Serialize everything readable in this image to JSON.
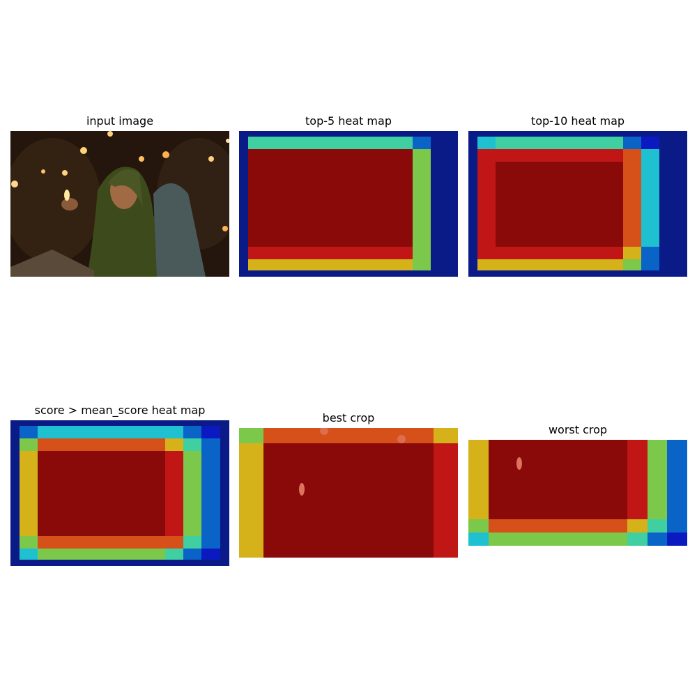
{
  "panels": [
    {
      "id": "input",
      "title": "input image"
    },
    {
      "id": "top5",
      "title": "top-5 heat map"
    },
    {
      "id": "top10",
      "title": "top-10 heat map"
    },
    {
      "id": "mean",
      "title": "score > mean_score heat map"
    },
    {
      "id": "best",
      "title": "best crop"
    },
    {
      "id": "worst",
      "title": "worst crop"
    }
  ],
  "heat_colors": {
    "dark_blue": "#0a1a86",
    "blue": "#0a64c8",
    "cyan": "#1fc0d0",
    "teal": "#3fcfa0",
    "green": "#7cc84a",
    "yellow": "#d6b21a",
    "orange": "#d6501a",
    "red": "#c01616",
    "dark_red": "#8a0a0a"
  },
  "image_description_colors": {
    "background": "#2a1a0e",
    "scarf": "#3d4a1e",
    "candle": "#ffd27a"
  }
}
